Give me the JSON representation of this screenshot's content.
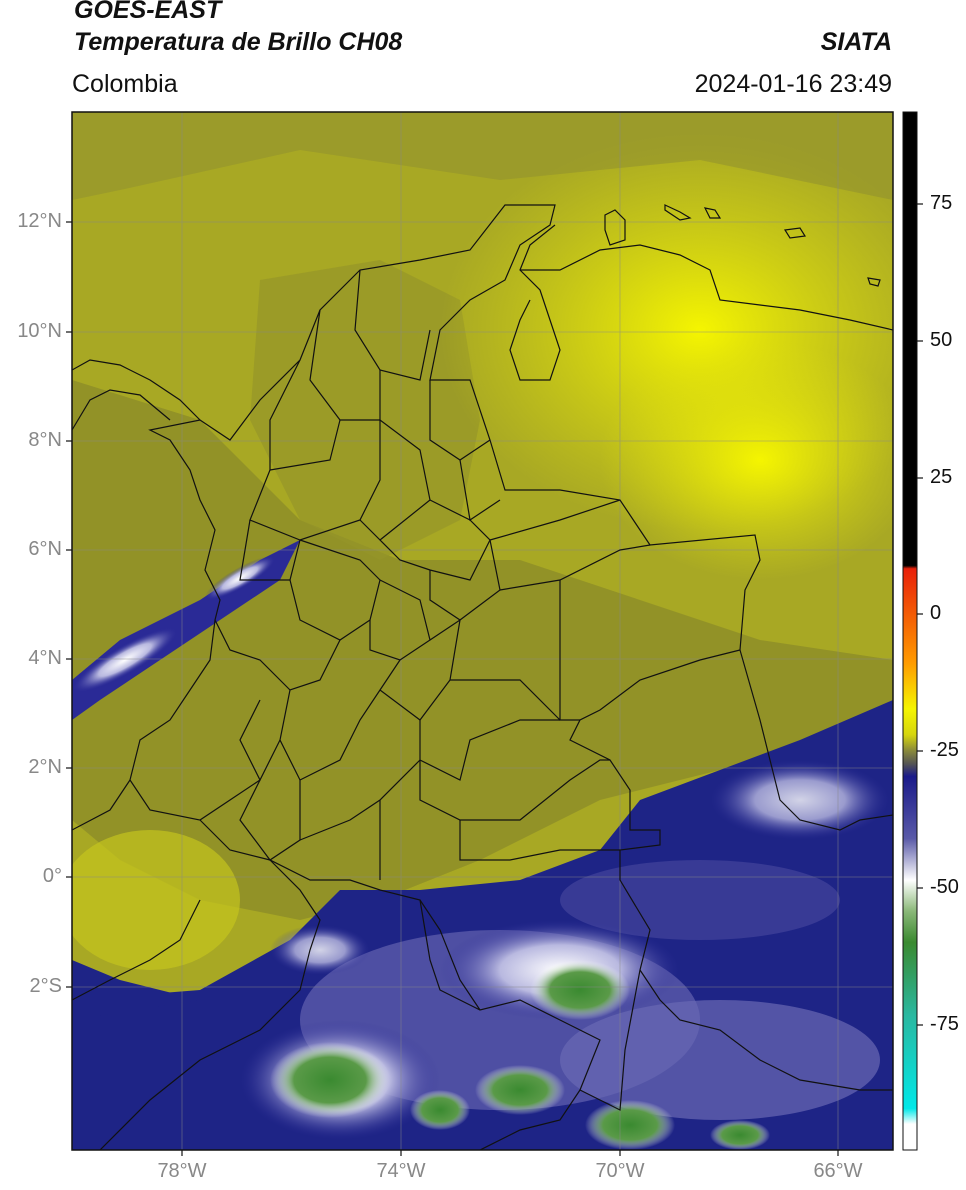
{
  "header": {
    "title_line1": "GOES-EAST",
    "title_line2": "Temperatura de Brillo CH08",
    "brand": "SIATA",
    "region": "Colombia",
    "timestamp": "2024-01-16 23:49"
  },
  "axes": {
    "lat_labels": [
      "12°N",
      "10°N",
      "8°N",
      "6°N",
      "4°N",
      "2°N",
      "0°",
      "2°S"
    ],
    "lon_labels": [
      "78°W",
      "74°W",
      "70°W",
      "66°W"
    ]
  },
  "colorbar": {
    "labels": [
      "75",
      "50",
      "25",
      "0",
      "-25",
      "-50",
      "-75"
    ],
    "colors": {
      "black": "#000000",
      "red": "#e8200a",
      "orange": "#ff9a00",
      "yellow": "#f5f500",
      "olive": "#6f6f2a",
      "navy": "#1a1a8a",
      "white": "#ffffff",
      "green": "#3a8a30",
      "teal": "#2ab8a0",
      "cyan": "#00e8e8"
    }
  },
  "colors": {
    "land_olive": "#7a7a2a",
    "cloud_yellow": "#e8e80c",
    "cold_navy": "#1e2486",
    "cold_green": "#3e8a34",
    "border": "#111111",
    "grid": "#888888"
  }
}
